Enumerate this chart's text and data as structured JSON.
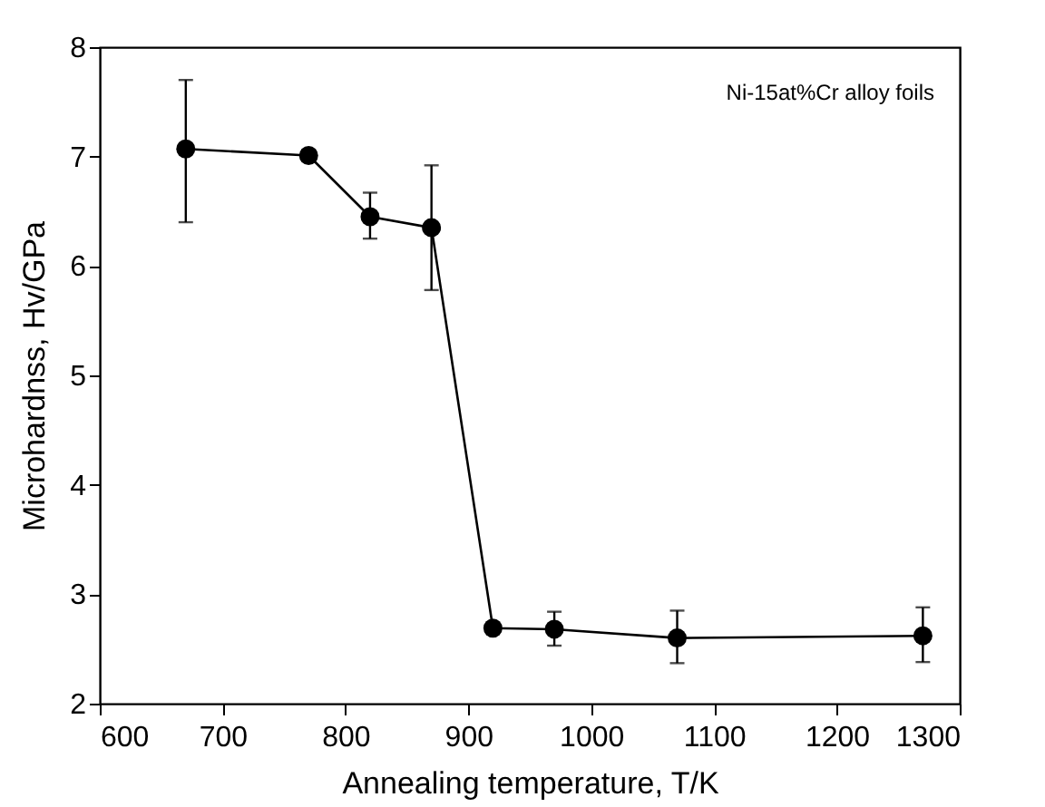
{
  "chart_data": {
    "type": "line",
    "xlabel": "Annealing temperature, T/K",
    "ylabel": "Microhardnss, Hv/GPa",
    "x": [
      670,
      770,
      820,
      870,
      920,
      970,
      1070,
      1270
    ],
    "series": [
      {
        "color": "#000000",
        "values": [
          7.07,
          7.01,
          6.45,
          6.35,
          2.69,
          2.68,
          2.6,
          2.62
        ],
        "errors": [
          [
            6.4,
            7.7
          ],
          [
            6.96,
            7.06
          ],
          [
            6.25,
            6.67
          ],
          [
            5.78,
            6.92
          ],
          null,
          [
            2.53,
            2.84
          ],
          [
            2.37,
            2.85
          ],
          [
            2.38,
            2.88
          ]
        ]
      }
    ],
    "marker": "circle",
    "xlim": [
      600,
      1300
    ],
    "xticks": [
      600,
      700,
      800,
      900,
      1000,
      1100,
      1200,
      1300
    ],
    "ylim": [
      2,
      8
    ],
    "yticks": [
      2,
      3,
      4,
      5,
      6,
      7,
      8
    ],
    "annotations": [
      "Ni-15at%Cr alloy foils"
    ]
  }
}
